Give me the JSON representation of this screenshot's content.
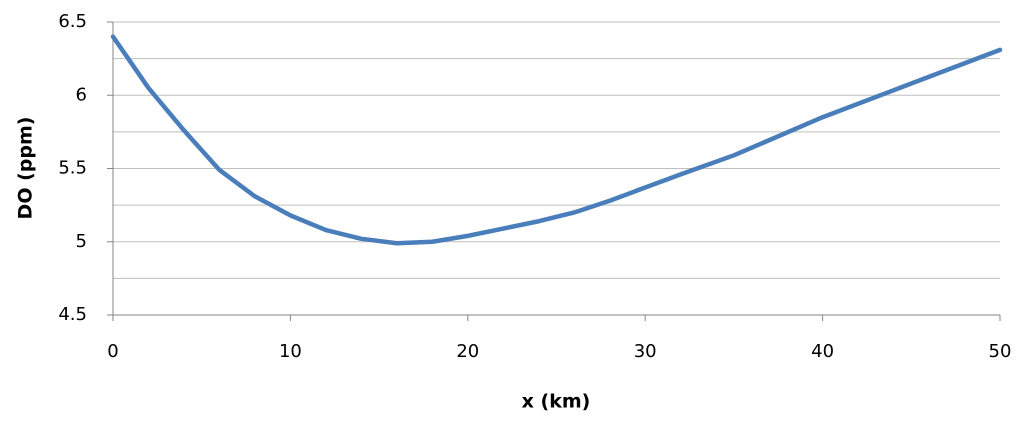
{
  "chart_data": {
    "type": "line",
    "x_label": "x (km)",
    "y_label": "DO (ppm)",
    "series": [
      {
        "color": "#4a7ebb",
        "x": [
          0,
          2,
          4,
          6,
          8,
          10,
          12,
          14,
          16,
          18,
          20,
          22,
          24,
          26,
          28,
          30,
          32,
          35,
          40,
          45,
          50
        ],
        "values": [
          6.4,
          6.05,
          5.76,
          5.49,
          5.31,
          5.18,
          5.08,
          5.02,
          4.99,
          5.0,
          5.04,
          5.09,
          5.14,
          5.2,
          5.28,
          5.37,
          5.46,
          5.59,
          5.85,
          6.08,
          6.31
        ]
      }
    ],
    "xlim": [
      0,
      50
    ],
    "xticks": [
      0,
      10,
      20,
      30,
      40,
      50
    ],
    "ylim": [
      4.5,
      6.5
    ],
    "yticks": [
      4.5,
      5,
      5.5,
      6,
      6.5
    ],
    "minor_yticks": [
      4.75,
      5.25,
      5.75,
      6.25
    ],
    "grid": true
  }
}
